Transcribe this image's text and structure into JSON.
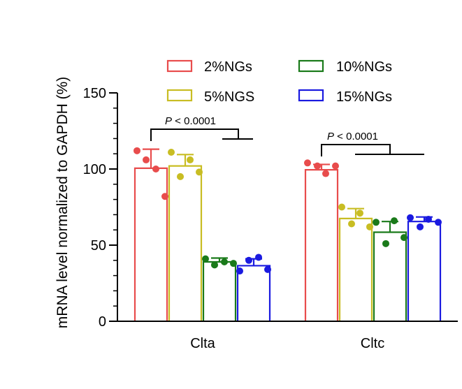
{
  "chart_data": {
    "type": "bar",
    "title": "",
    "xlabel": "",
    "ylabel": "mRNA level normalized to GAPDH (%)",
    "ylim": [
      0,
      150
    ],
    "yticks": [
      "0",
      "50",
      "100",
      "150"
    ],
    "grid": false,
    "legend_position": "top-right",
    "categories": [
      "Clta",
      "Cltc"
    ],
    "series": [
      {
        "name": "2%NGs",
        "color": "#e84c4c",
        "values": [
          100.5,
          99.5
        ],
        "errors": [
          12.5,
          3.5
        ],
        "points": [
          [
            112,
            106,
            100,
            82
          ],
          [
            104,
            102,
            97,
            102
          ]
        ]
      },
      {
        "name": "5%NGS",
        "color": "#c8bd23",
        "values": [
          102,
          67.5
        ],
        "errors": [
          7.5,
          6.5
        ],
        "points": [
          [
            111,
            95,
            106,
            98
          ],
          [
            75,
            64,
            71,
            62
          ]
        ]
      },
      {
        "name": "10%NGs",
        "color": "#1a7a1a",
        "values": [
          39,
          58.5
        ],
        "errors": [
          2.5,
          7
        ],
        "points": [
          [
            41,
            37,
            39,
            38
          ],
          [
            65,
            51,
            66,
            55
          ]
        ]
      },
      {
        "name": "15%NGs",
        "color": "#1a1ae0",
        "values": [
          36.5,
          65.5
        ],
        "errors": [
          4.5,
          3
        ],
        "points": [
          [
            33,
            40,
            42,
            34
          ],
          [
            68,
            62,
            67,
            65
          ]
        ]
      }
    ],
    "annotations": [
      {
        "category": "Clta",
        "label_p": "P",
        "label_rest": " < 0.0001"
      },
      {
        "category": "Cltc",
        "label_p": "P",
        "label_rest": " < 0.0001"
      }
    ]
  }
}
